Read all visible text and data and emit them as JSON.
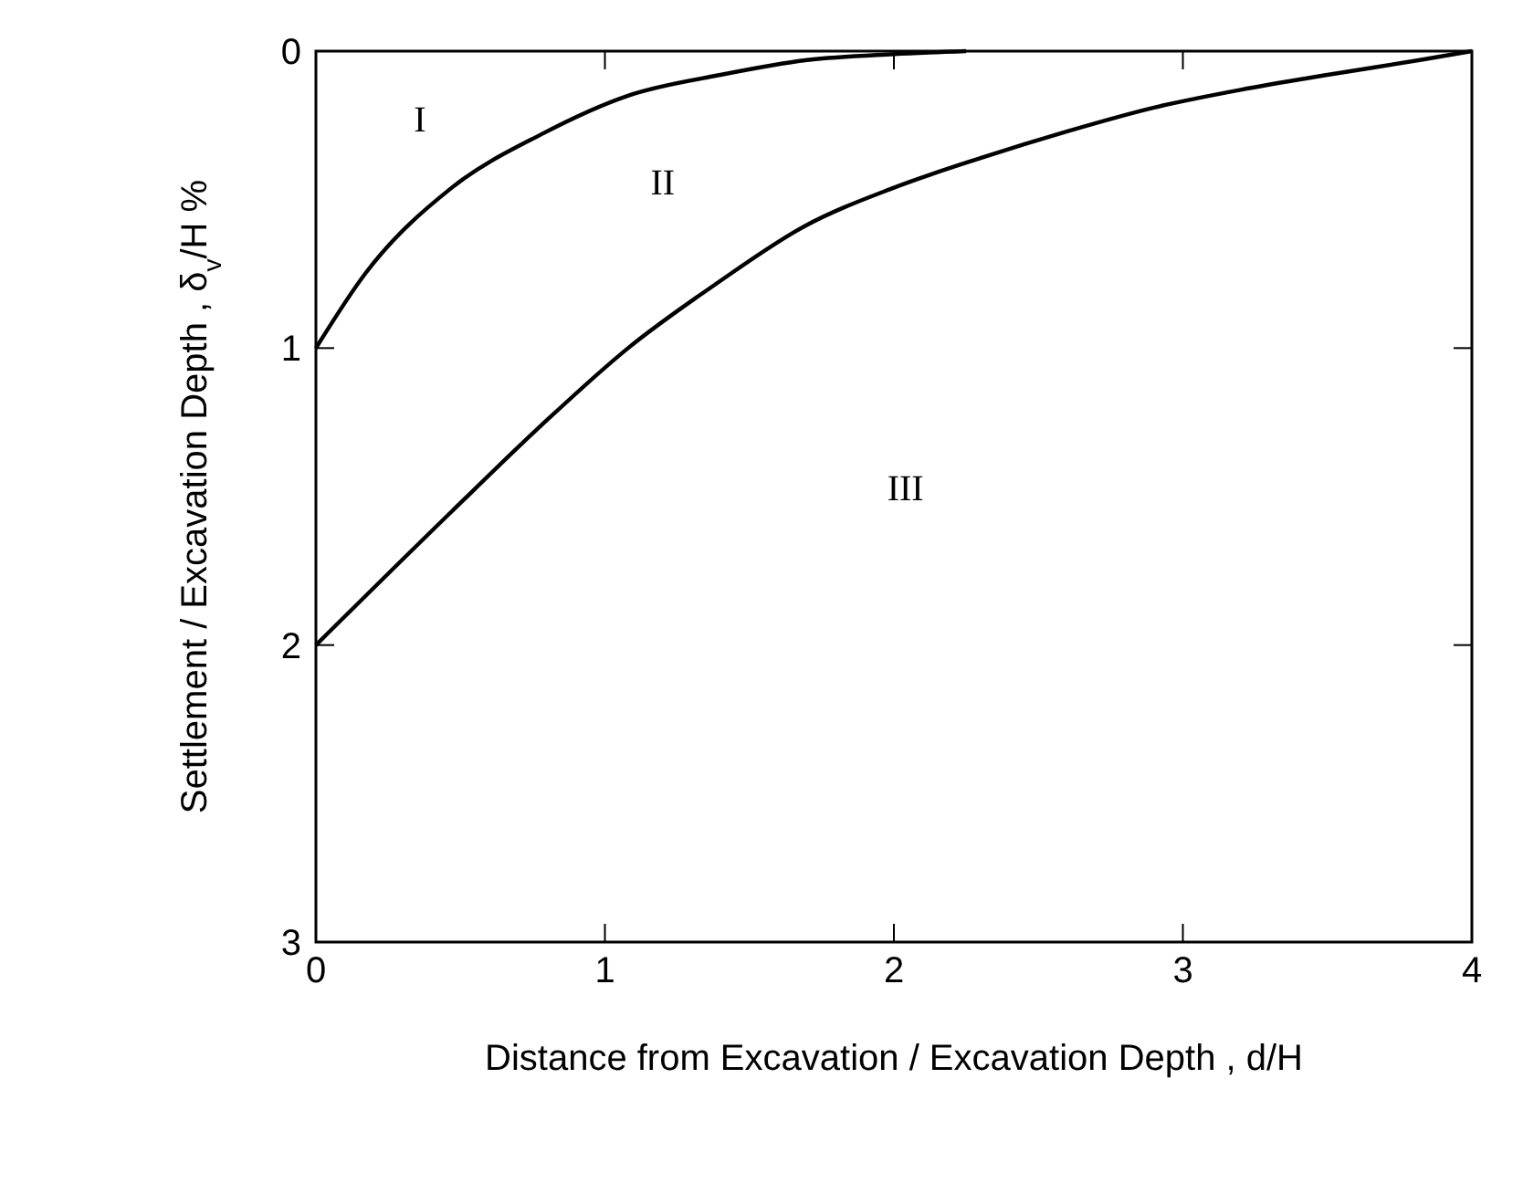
{
  "chart_data": {
    "type": "line",
    "xlabel": "Distance from Excavation / Excavation Depth , d/H",
    "ylabel": "Settlement / Excavation Depth , δ$_{v}$/H %",
    "xlim": [
      0,
      4
    ],
    "ylim": [
      3,
      0
    ],
    "xticks": [
      0,
      1,
      2,
      3,
      4
    ],
    "yticks": [
      0,
      1,
      2,
      3
    ],
    "grid": false,
    "marker": "none",
    "line_style": "solid",
    "series": [
      {
        "color": "#000000",
        "x": [
          0,
          0.17,
          0.47,
          0.78,
          1.08,
          1.4,
          1.7,
          2.0,
          2.25
        ],
        "values": [
          1,
          0.75,
          0.46,
          0.28,
          0.15,
          0.08,
          0.03,
          0.01,
          0
        ]
      },
      {
        "color": "#000000",
        "x": [
          0,
          0.47,
          0.78,
          1.08,
          1.39,
          1.69,
          2.0,
          2.3,
          2.6,
          2.9,
          3.2,
          3.5,
          3.82,
          4
        ],
        "values": [
          2,
          1.55,
          1.26,
          1.0,
          0.78,
          0.59,
          0.46,
          0.36,
          0.27,
          0.19,
          0.13,
          0.08,
          0.03,
          0
        ]
      }
    ],
    "annotations": [
      "I",
      "II",
      "III"
    ]
  }
}
